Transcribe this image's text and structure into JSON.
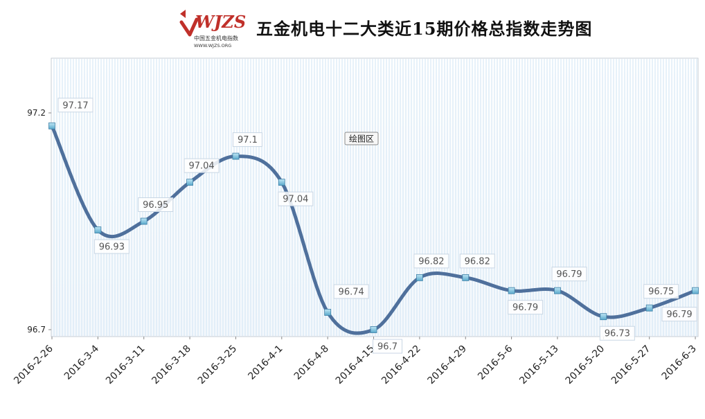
{
  "logo": {
    "mark": "WJZS",
    "sub_cn": "中国五金机电指数",
    "sub_url": "WWW.WJZS.ORG"
  },
  "colors": {
    "line": "#4f709c",
    "marker": "#7fc3dd",
    "grid": "#cfe4f4",
    "logo_red": "#c0302a"
  },
  "chart_data": {
    "type": "line",
    "title": "五金机电十二大类近15期价格总指数走势图",
    "plot_area_label": "绘图区",
    "xlabel": "",
    "ylabel": "",
    "ylim": [
      96.7,
      97.2
    ],
    "yticks": [
      "97.2",
      "96.7"
    ],
    "grid": true,
    "smooth": true,
    "categories": [
      "2016-2-26",
      "2016-3-4",
      "2016-3-11",
      "2016-3-18",
      "2016-3-25",
      "2016-4-1",
      "2016-4-8",
      "2016-4-15",
      "2016-4-22",
      "2016-4-29",
      "2016-5-6",
      "2016-5-13",
      "2016-5-20",
      "2016-5-27",
      "2016-6-3"
    ],
    "values": [
      97.17,
      96.93,
      96.95,
      97.04,
      97.1,
      97.04,
      96.74,
      96.7,
      96.82,
      96.82,
      96.79,
      96.79,
      96.73,
      96.75,
      96.79
    ],
    "data_labels": [
      "97.17",
      "96.93",
      "96.95",
      "97.04",
      "97.1",
      "97.04",
      "96.74",
      "96.7",
      "96.82",
      "96.82",
      "96.79",
      "96.79",
      "96.73",
      "96.75",
      "96.79"
    ]
  }
}
